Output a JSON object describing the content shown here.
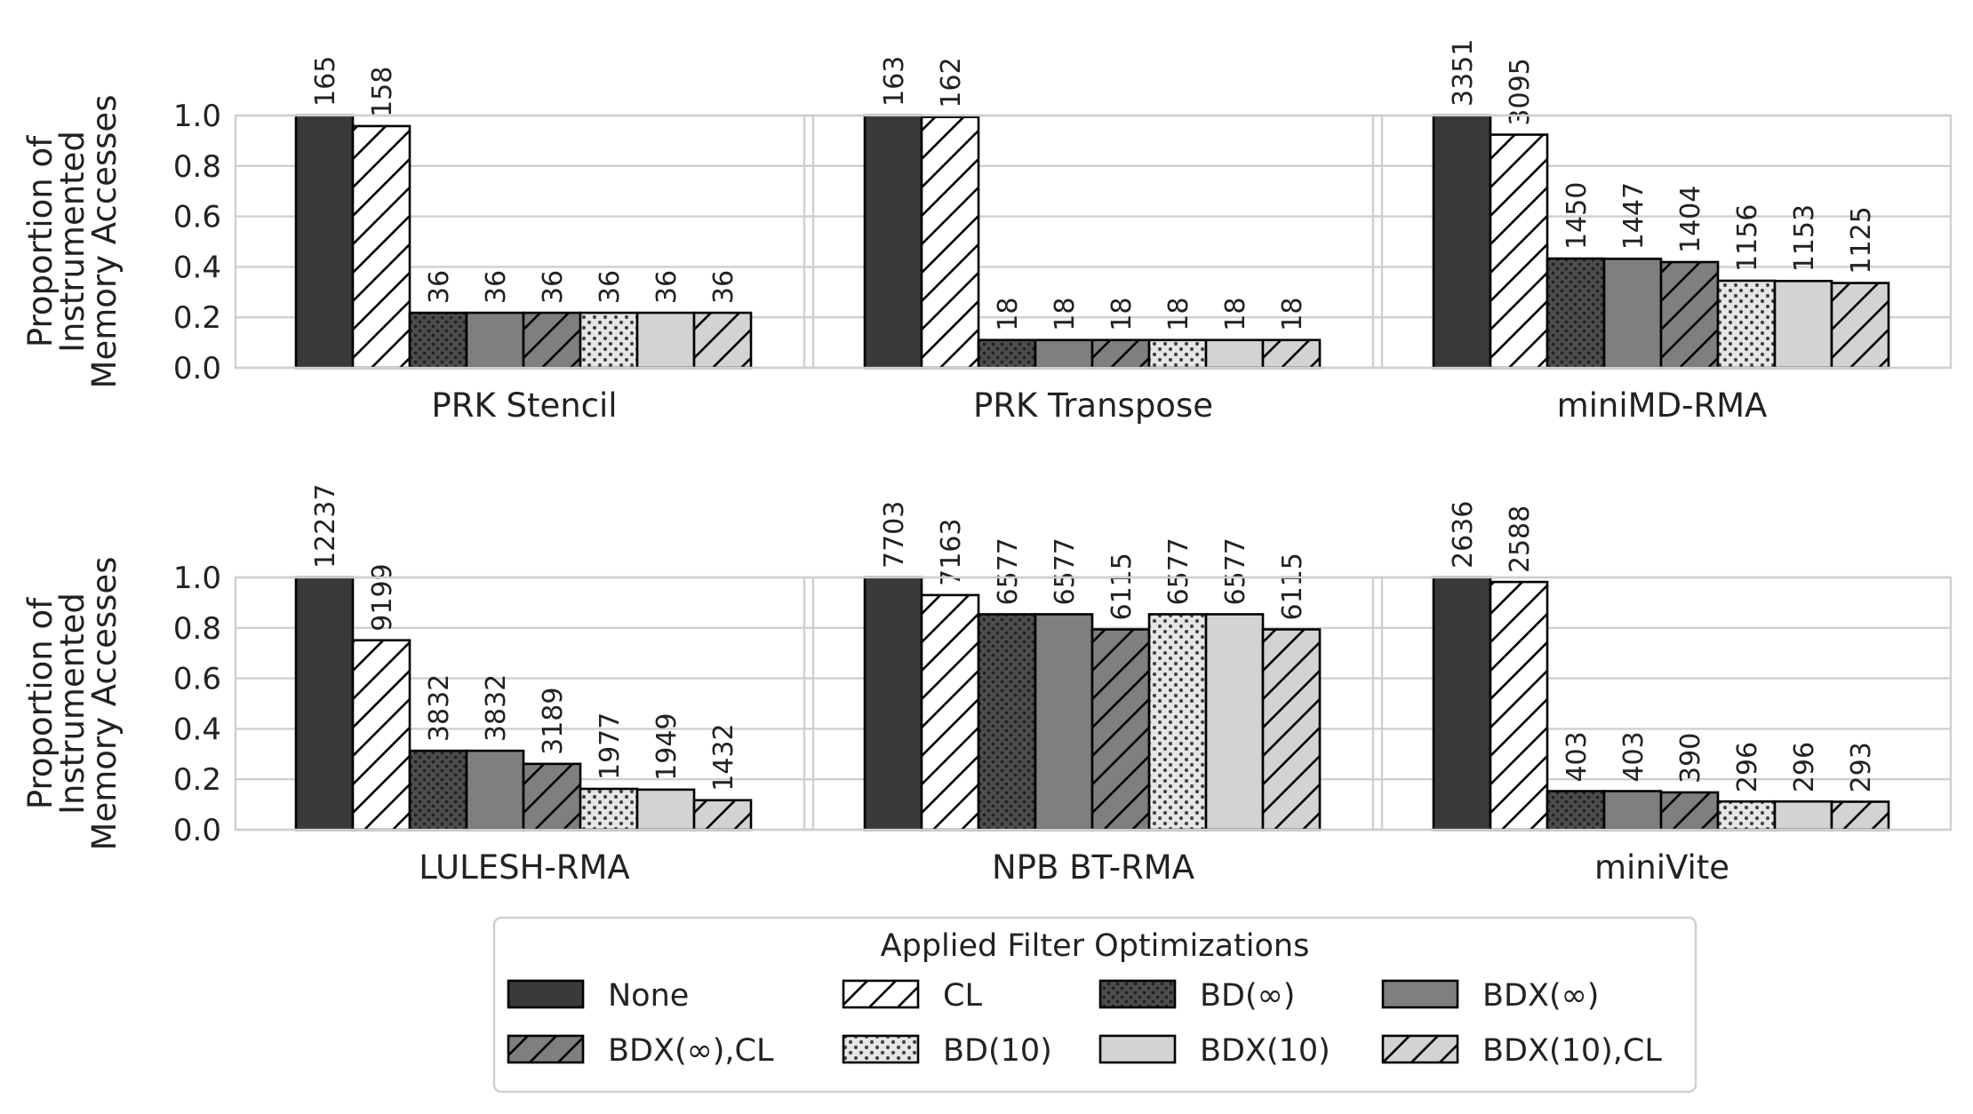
{
  "y_axis_label_lines": [
    "Proportion of",
    "Instrumented",
    "Memory Accesses"
  ],
  "legend": {
    "title": "Applied Filter Optimizations",
    "entries": [
      {
        "label": "None",
        "fill": "#3a3a3a",
        "pattern": "none"
      },
      {
        "label": "CL",
        "fill": "#ffffff",
        "pattern": "hatch"
      },
      {
        "label": "BD(∞)",
        "fill": "#4d4d4d",
        "pattern": "dots-dark"
      },
      {
        "label": "BDX(∞)",
        "fill": "#7f7f7f",
        "pattern": "none"
      },
      {
        "label": "BDX(∞),CL",
        "fill": "#7f7f7f",
        "pattern": "hatch"
      },
      {
        "label": "BD(10)",
        "fill": "#e6e6e6",
        "pattern": "dots-light"
      },
      {
        "label": "BDX(10)",
        "fill": "#d3d3d3",
        "pattern": "none"
      },
      {
        "label": "BDX(10),CL",
        "fill": "#d3d3d3",
        "pattern": "hatch"
      }
    ]
  },
  "chart_data": [
    {
      "type": "bar",
      "title": "PRK Stencil",
      "categories": [
        "None",
        "CL",
        "BD(∞)",
        "BDX(∞)",
        "BDX(∞),CL",
        "BD(10)",
        "BDX(10)",
        "BDX(10),CL"
      ],
      "values": [
        1.0,
        0.958,
        0.218,
        0.218,
        0.218,
        0.218,
        0.218,
        0.218
      ],
      "bar_labels": [
        "165",
        "158",
        "36",
        "36",
        "36",
        "36",
        "36",
        "36"
      ],
      "yticks": [
        "0.0",
        "0.2",
        "0.4",
        "0.6",
        "0.8",
        "1.0"
      ],
      "ylim": [
        0,
        1.0
      ],
      "grid": true
    },
    {
      "type": "bar",
      "title": "PRK Transpose",
      "categories": [
        "None",
        "CL",
        "BD(∞)",
        "BDX(∞)",
        "BDX(∞),CL",
        "BD(10)",
        "BDX(10)",
        "BDX(10),CL"
      ],
      "values": [
        1.0,
        0.994,
        0.11,
        0.11,
        0.11,
        0.11,
        0.11,
        0.11
      ],
      "bar_labels": [
        "163",
        "162",
        "18",
        "18",
        "18",
        "18",
        "18",
        "18"
      ],
      "yticks": [
        "0.0",
        "0.2",
        "0.4",
        "0.6",
        "0.8",
        "1.0"
      ],
      "ylim": [
        0,
        1.0
      ],
      "grid": true
    },
    {
      "type": "bar",
      "title": "miniMD-RMA",
      "categories": [
        "None",
        "CL",
        "BD(∞)",
        "BDX(∞)",
        "BDX(∞),CL",
        "BD(10)",
        "BDX(10)",
        "BDX(10),CL"
      ],
      "values": [
        1.0,
        0.924,
        0.433,
        0.432,
        0.419,
        0.345,
        0.344,
        0.336
      ],
      "bar_labels": [
        "3351",
        "3095",
        "1450",
        "1447",
        "1404",
        "1156",
        "1153",
        "1125"
      ],
      "yticks": [
        "0.0",
        "0.2",
        "0.4",
        "0.6",
        "0.8",
        "1.0"
      ],
      "ylim": [
        0,
        1.0
      ],
      "grid": true
    },
    {
      "type": "bar",
      "title": "LULESH-RMA",
      "categories": [
        "None",
        "CL",
        "BD(∞)",
        "BDX(∞)",
        "BDX(∞),CL",
        "BD(10)",
        "BDX(10)",
        "BDX(10),CL"
      ],
      "values": [
        1.0,
        0.751,
        0.313,
        0.313,
        0.261,
        0.162,
        0.159,
        0.117
      ],
      "bar_labels": [
        "12237",
        "9199",
        "3832",
        "3832",
        "3189",
        "1977",
        "1949",
        "1432"
      ],
      "yticks": [
        "0.0",
        "0.2",
        "0.4",
        "0.6",
        "0.8",
        "1.0"
      ],
      "ylim": [
        0,
        1.0
      ],
      "grid": true
    },
    {
      "type": "bar",
      "title": "NPB BT-RMA",
      "categories": [
        "None",
        "CL",
        "BD(∞)",
        "BDX(∞)",
        "BDX(∞),CL",
        "BD(10)",
        "BDX(10)",
        "BDX(10),CL"
      ],
      "values": [
        1.0,
        0.93,
        0.854,
        0.854,
        0.794,
        0.854,
        0.854,
        0.794
      ],
      "bar_labels": [
        "7703",
        "7163",
        "6577",
        "6577",
        "6115",
        "6577",
        "6577",
        "6115"
      ],
      "yticks": [
        "0.0",
        "0.2",
        "0.4",
        "0.6",
        "0.8",
        "1.0"
      ],
      "ylim": [
        0,
        1.0
      ],
      "grid": true
    },
    {
      "type": "bar",
      "title": "miniVite",
      "categories": [
        "None",
        "CL",
        "BD(∞)",
        "BDX(∞)",
        "BDX(∞),CL",
        "BD(10)",
        "BDX(10)",
        "BDX(10),CL"
      ],
      "values": [
        1.0,
        0.982,
        0.153,
        0.153,
        0.148,
        0.112,
        0.112,
        0.111
      ],
      "bar_labels": [
        "2636",
        "2588",
        "403",
        "403",
        "390",
        "296",
        "296",
        "293"
      ],
      "yticks": [
        "0.0",
        "0.2",
        "0.4",
        "0.6",
        "0.8",
        "1.0"
      ],
      "ylim": [
        0,
        1.0
      ],
      "grid": true
    }
  ]
}
